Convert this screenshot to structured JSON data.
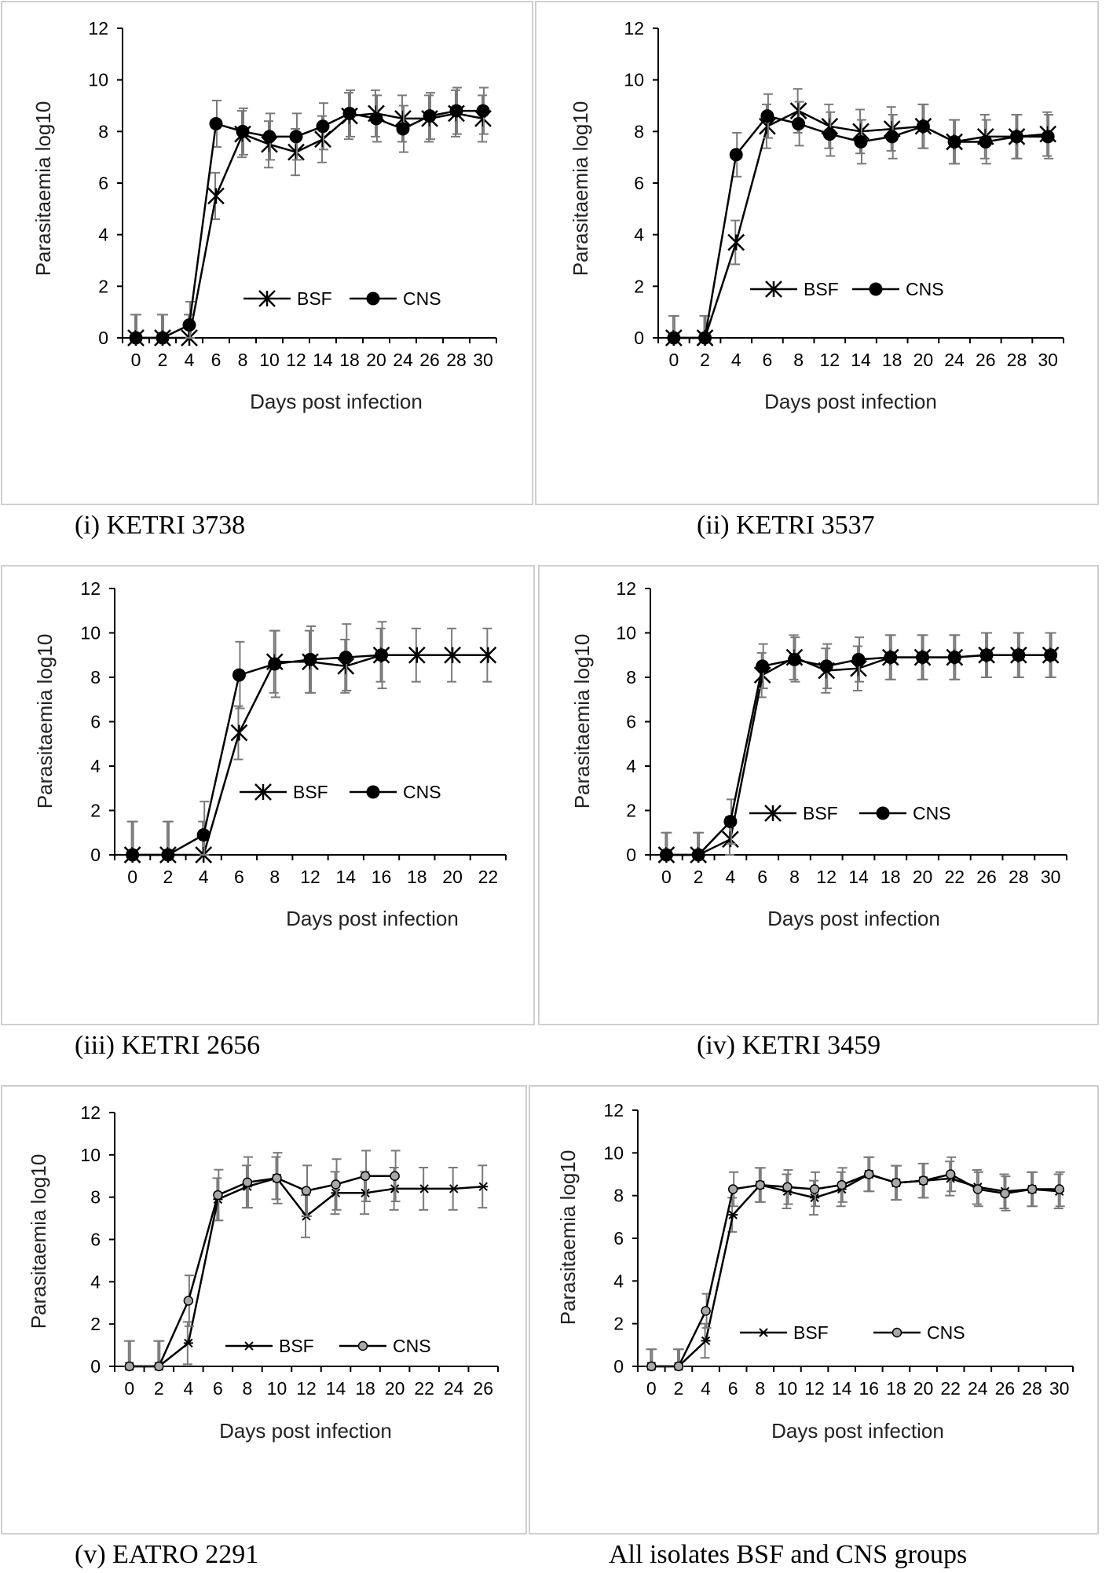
{
  "chart_data": [
    {
      "type": "line",
      "caption": "(i) KETRI 3738",
      "xlabel": "Days post infection",
      "ylabel": "Parasitaemia log10",
      "ylim": [
        0,
        12
      ],
      "yticks": [
        "0",
        "2",
        "4",
        "6",
        "8",
        "10",
        "12"
      ],
      "categories": [
        "0",
        "2",
        "4",
        "6",
        "8",
        "10",
        "12",
        "14",
        "18",
        "20",
        "24",
        "26",
        "28",
        "30"
      ],
      "marker_style": "star-fill",
      "series": [
        {
          "name": "BSF",
          "marker": "star",
          "values": [
            0,
            0,
            0,
            5.5,
            7.9,
            7.5,
            7.2,
            7.7,
            8.6,
            8.7,
            8.5,
            8.5,
            8.7,
            8.5
          ],
          "errors": [
            0.9,
            0.9,
            0.9,
            0.9,
            0.9,
            0.9,
            0.9,
            0.9,
            0.9,
            0.9,
            0.9,
            0.9,
            0.9,
            0.9
          ]
        },
        {
          "name": "CNS",
          "marker": "filled",
          "values": [
            0,
            0,
            0.5,
            8.3,
            8.0,
            7.8,
            7.8,
            8.2,
            8.7,
            8.5,
            8.1,
            8.6,
            8.8,
            8.8
          ],
          "errors": [
            0.9,
            0.9,
            0.9,
            0.9,
            0.9,
            0.9,
            0.9,
            0.9,
            0.9,
            0.9,
            0.9,
            0.9,
            0.9,
            0.9
          ]
        }
      ]
    },
    {
      "type": "line",
      "caption": "(ii) KETRI 3537",
      "xlabel": "Days post infection",
      "ylabel": "Parasitaemia log10",
      "ylim": [
        0,
        12
      ],
      "yticks": [
        "0",
        "2",
        "4",
        "6",
        "8",
        "10",
        "12"
      ],
      "categories": [
        "0",
        "2",
        "4",
        "6",
        "8",
        "12",
        "14",
        "18",
        "20",
        "24",
        "26",
        "28",
        "30"
      ],
      "marker_style": "filled",
      "series": [
        {
          "name": "BSF",
          "marker": "star",
          "values": [
            0,
            0,
            3.7,
            8.2,
            8.8,
            8.2,
            8.0,
            8.1,
            8.2,
            7.6,
            7.8,
            7.8,
            7.9
          ],
          "errors": [
            0.85,
            0.85,
            0.85,
            0.85,
            0.85,
            0.85,
            0.85,
            0.85,
            0.85,
            0.85,
            0.85,
            0.85,
            0.85
          ]
        },
        {
          "name": "CNS",
          "marker": "filled",
          "values": [
            0,
            0,
            7.1,
            8.6,
            8.3,
            7.9,
            7.6,
            7.8,
            8.2,
            7.6,
            7.6,
            7.8,
            7.8
          ],
          "errors": [
            0.85,
            0.85,
            0.85,
            0.85,
            0.85,
            0.85,
            0.85,
            0.85,
            0.85,
            0.85,
            0.85,
            0.85,
            0.85
          ]
        }
      ]
    },
    {
      "type": "line",
      "caption": "(iii) KETRI 2656",
      "xlabel": "Days post infection",
      "ylabel": "Parasitaemia log10",
      "ylim": [
        0,
        12
      ],
      "yticks": [
        "0",
        "2",
        "4",
        "6",
        "8",
        "10",
        "12"
      ],
      "categories": [
        "0",
        "2",
        "4",
        "6",
        "8",
        "12",
        "14",
        "16",
        "18",
        "20",
        "22"
      ],
      "marker_style": "filled",
      "series": [
        {
          "name": "BSF",
          "marker": "star",
          "values": [
            0,
            0,
            0,
            5.5,
            8.7,
            8.7,
            8.5,
            9.0,
            9.0,
            9.0,
            9.0
          ],
          "errors": [
            1.5,
            1.5,
            1.5,
            1.2,
            1.4,
            1.4,
            1.2,
            1.2,
            1.2,
            1.2,
            1.2
          ]
        },
        {
          "name": "CNS",
          "marker": "filled",
          "values": [
            0,
            0,
            0.9,
            8.1,
            8.6,
            8.8,
            8.9,
            9.0,
            null,
            null,
            null
          ],
          "errors": [
            1.5,
            1.5,
            1.5,
            1.5,
            1.5,
            1.5,
            1.5,
            1.5,
            null,
            null,
            null
          ]
        }
      ]
    },
    {
      "type": "line",
      "caption": "(iv) KETRI 3459",
      "xlabel": "Days post infection",
      "ylabel": "Parasitaemia log10",
      "ylim": [
        0,
        12
      ],
      "yticks": [
        "0",
        "2",
        "4",
        "6",
        "8",
        "10",
        "12"
      ],
      "categories": [
        "0",
        "2",
        "4",
        "6",
        "8",
        "12",
        "14",
        "18",
        "20",
        "22",
        "26",
        "28",
        "30"
      ],
      "marker_style": "filled",
      "series": [
        {
          "name": "BSF",
          "marker": "star",
          "values": [
            0,
            0,
            0.7,
            8.1,
            8.9,
            8.3,
            8.4,
            8.9,
            8.9,
            8.9,
            9.0,
            9.0,
            9.0
          ],
          "errors": [
            1.0,
            1.0,
            1.0,
            1.0,
            1.0,
            1.0,
            1.0,
            1.0,
            1.0,
            1.0,
            1.0,
            1.0,
            1.0
          ]
        },
        {
          "name": "CNS",
          "marker": "filled",
          "values": [
            0,
            0,
            1.5,
            8.5,
            8.8,
            8.5,
            8.8,
            8.9,
            8.9,
            8.9,
            9.0,
            9.0,
            9.0
          ],
          "errors": [
            1.0,
            1.0,
            1.0,
            1.0,
            1.0,
            1.0,
            1.0,
            1.0,
            1.0,
            1.0,
            1.0,
            1.0,
            1.0
          ]
        }
      ]
    },
    {
      "type": "line",
      "caption": "(v) EATRO 2291",
      "xlabel": "Days post infection",
      "ylabel": "Parasitaemia log10",
      "ylim": [
        0,
        12
      ],
      "yticks": [
        "0",
        "2",
        "4",
        "6",
        "8",
        "10",
        "12"
      ],
      "categories": [
        "0",
        "2",
        "4",
        "6",
        "8",
        "10",
        "12",
        "14",
        "18",
        "20",
        "22",
        "24",
        "26"
      ],
      "marker_style": "gray",
      "series": [
        {
          "name": "BSF",
          "marker": "small-star",
          "values": [
            0,
            0,
            1.1,
            7.9,
            8.5,
            8.9,
            7.1,
            8.2,
            8.2,
            8.4,
            8.4,
            8.4,
            8.5
          ],
          "errors": [
            1.2,
            1.2,
            1.0,
            1.0,
            1.0,
            1.0,
            1.0,
            1.0,
            1.0,
            1.0,
            1.0,
            1.0,
            1.0
          ]
        },
        {
          "name": "CNS",
          "marker": "gray",
          "values": [
            0,
            0,
            3.1,
            8.1,
            8.7,
            8.9,
            8.3,
            8.6,
            9.0,
            9.0,
            null,
            null,
            null
          ],
          "errors": [
            1.2,
            1.2,
            1.2,
            1.2,
            1.2,
            1.2,
            1.2,
            1.2,
            1.2,
            1.2,
            null,
            null,
            null
          ]
        }
      ]
    },
    {
      "type": "line",
      "caption": "All isolates BSF and CNS groups",
      "xlabel": "Days post infection",
      "ylabel": "Parasitaemia log10",
      "ylim": [
        0,
        12
      ],
      "yticks": [
        "0",
        "2",
        "4",
        "6",
        "8",
        "10",
        "12"
      ],
      "categories": [
        "0",
        "2",
        "4",
        "6",
        "8",
        "10",
        "12",
        "14",
        "16",
        "18",
        "20",
        "22",
        "24",
        "26",
        "28",
        "30"
      ],
      "marker_style": "gray",
      "series": [
        {
          "name": "BSF",
          "marker": "small-star",
          "values": [
            0,
            0,
            1.2,
            7.1,
            8.5,
            8.2,
            7.9,
            8.3,
            9.0,
            8.6,
            8.7,
            8.8,
            8.4,
            8.2,
            8.3,
            8.2
          ],
          "errors": [
            0.8,
            0.8,
            0.8,
            0.8,
            0.8,
            0.8,
            0.8,
            0.8,
            0.8,
            0.8,
            0.8,
            0.8,
            0.8,
            0.8,
            0.8,
            0.8
          ]
        },
        {
          "name": "CNS",
          "marker": "gray",
          "values": [
            0,
            0,
            2.6,
            8.3,
            8.5,
            8.4,
            8.3,
            8.5,
            9.0,
            8.6,
            8.7,
            9.0,
            8.3,
            8.1,
            8.3,
            8.3
          ],
          "errors": [
            0.8,
            0.8,
            0.8,
            0.8,
            0.8,
            0.8,
            0.8,
            0.8,
            0.8,
            0.8,
            0.8,
            0.8,
            0.8,
            0.8,
            0.8,
            0.8
          ]
        }
      ]
    }
  ]
}
